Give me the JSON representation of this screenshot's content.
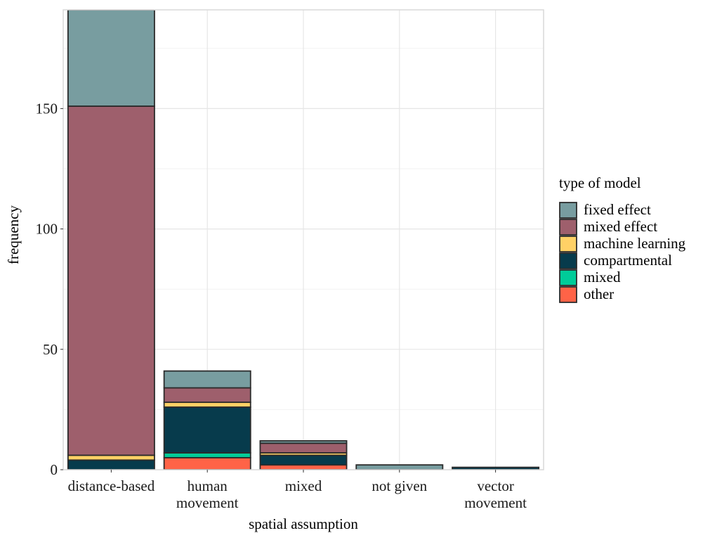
{
  "chart_data": {
    "type": "bar",
    "stacked": true,
    "xlabel": "spatial assumption",
    "ylabel": "frequency",
    "ylim": [
      0,
      191
    ],
    "y_ticks": [
      0,
      50,
      100,
      150
    ],
    "categories": [
      [
        "distance-based"
      ],
      [
        "human",
        "movement"
      ],
      [
        "mixed"
      ],
      [
        "not given"
      ],
      [
        "vector",
        "movement"
      ]
    ],
    "legend_title": "type of model",
    "legend_position": "right",
    "grid": true,
    "series": [
      {
        "name": "other",
        "color": "#ff6347",
        "values": [
          0,
          5,
          2,
          0,
          0
        ]
      },
      {
        "name": "mixed",
        "color": "#00cc99",
        "values": [
          0,
          2,
          0,
          0,
          0
        ]
      },
      {
        "name": "compartmental",
        "color": "#073b4c",
        "values": [
          4,
          19,
          4,
          0,
          1
        ]
      },
      {
        "name": "machine learning",
        "color": "#ffd166",
        "values": [
          2,
          2,
          1,
          0,
          0
        ]
      },
      {
        "name": "mixed effect",
        "color": "#9e5f6c",
        "values": [
          145,
          6,
          4,
          0,
          0
        ]
      },
      {
        "name": "fixed effect",
        "color": "#789da0",
        "values": [
          40,
          7,
          1,
          2,
          0
        ]
      }
    ],
    "legend_order": [
      "fixed effect",
      "mixed effect",
      "machine learning",
      "compartmental",
      "mixed",
      "other"
    ]
  }
}
